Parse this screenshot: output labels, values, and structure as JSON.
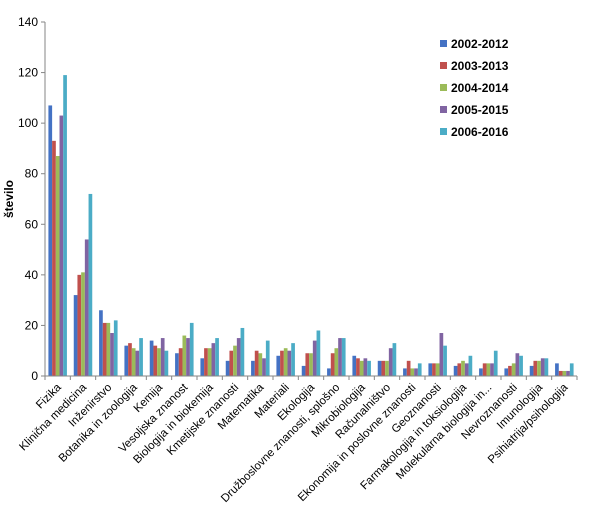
{
  "chart_data": {
    "type": "bar",
    "title": "",
    "xlabel": "",
    "ylabel": "število",
    "ylim": [
      0,
      140
    ],
    "yticks": [
      0,
      20,
      40,
      60,
      80,
      100,
      120,
      140
    ],
    "grid": false,
    "legend_position": "top-right",
    "categories": [
      "Fizika",
      "Klinična medicina",
      "Inženirstvo",
      "Botanika in zoologija",
      "Kemija",
      "Vesoljska znanost",
      "Biologija in biokemija",
      "Kmetijske znanosti",
      "Matematika",
      "Materiali",
      "Ekologija",
      "Družboslovne znanosti, splošno",
      "Mikrobiologija",
      "Računalništvo",
      "Ekonomija in poslovne znanosti",
      "Geoznanosti",
      "Farmakologija in toksiologija",
      "Molekularna biologija in...",
      "Nevroznanosti",
      "Imunologija",
      "Psihiatrija/psihologija"
    ],
    "series": [
      {
        "name": "2002-2012",
        "color": "#4472C4",
        "values": [
          107,
          32,
          26,
          12,
          14,
          9,
          7,
          6,
          6,
          8,
          4,
          3,
          8,
          6,
          3,
          5,
          4,
          3,
          3,
          4,
          5
        ]
      },
      {
        "name": "2003-2013",
        "color": "#C0504D",
        "values": [
          93,
          40,
          21,
          13,
          12,
          11,
          11,
          10,
          10,
          10,
          9,
          9,
          7,
          6,
          6,
          5,
          5,
          5,
          4,
          6,
          2
        ]
      },
      {
        "name": "2004-2014",
        "color": "#9BBB59",
        "values": [
          87,
          41,
          21,
          11,
          11,
          16,
          11,
          12,
          9,
          11,
          9,
          11,
          6,
          6,
          3,
          5,
          6,
          5,
          5,
          6,
          2
        ]
      },
      {
        "name": "2005-2015",
        "color": "#8064A2",
        "values": [
          103,
          54,
          17,
          10,
          15,
          15,
          13,
          15,
          7,
          10,
          14,
          15,
          7,
          11,
          3,
          17,
          5,
          5,
          9,
          7,
          2
        ]
      },
      {
        "name": "2006-2016",
        "color": "#4BACC6",
        "values": [
          119,
          72,
          22,
          15,
          10,
          21,
          15,
          19,
          14,
          13,
          18,
          15,
          6,
          13,
          5,
          12,
          8,
          10,
          8,
          7,
          5
        ]
      }
    ]
  }
}
